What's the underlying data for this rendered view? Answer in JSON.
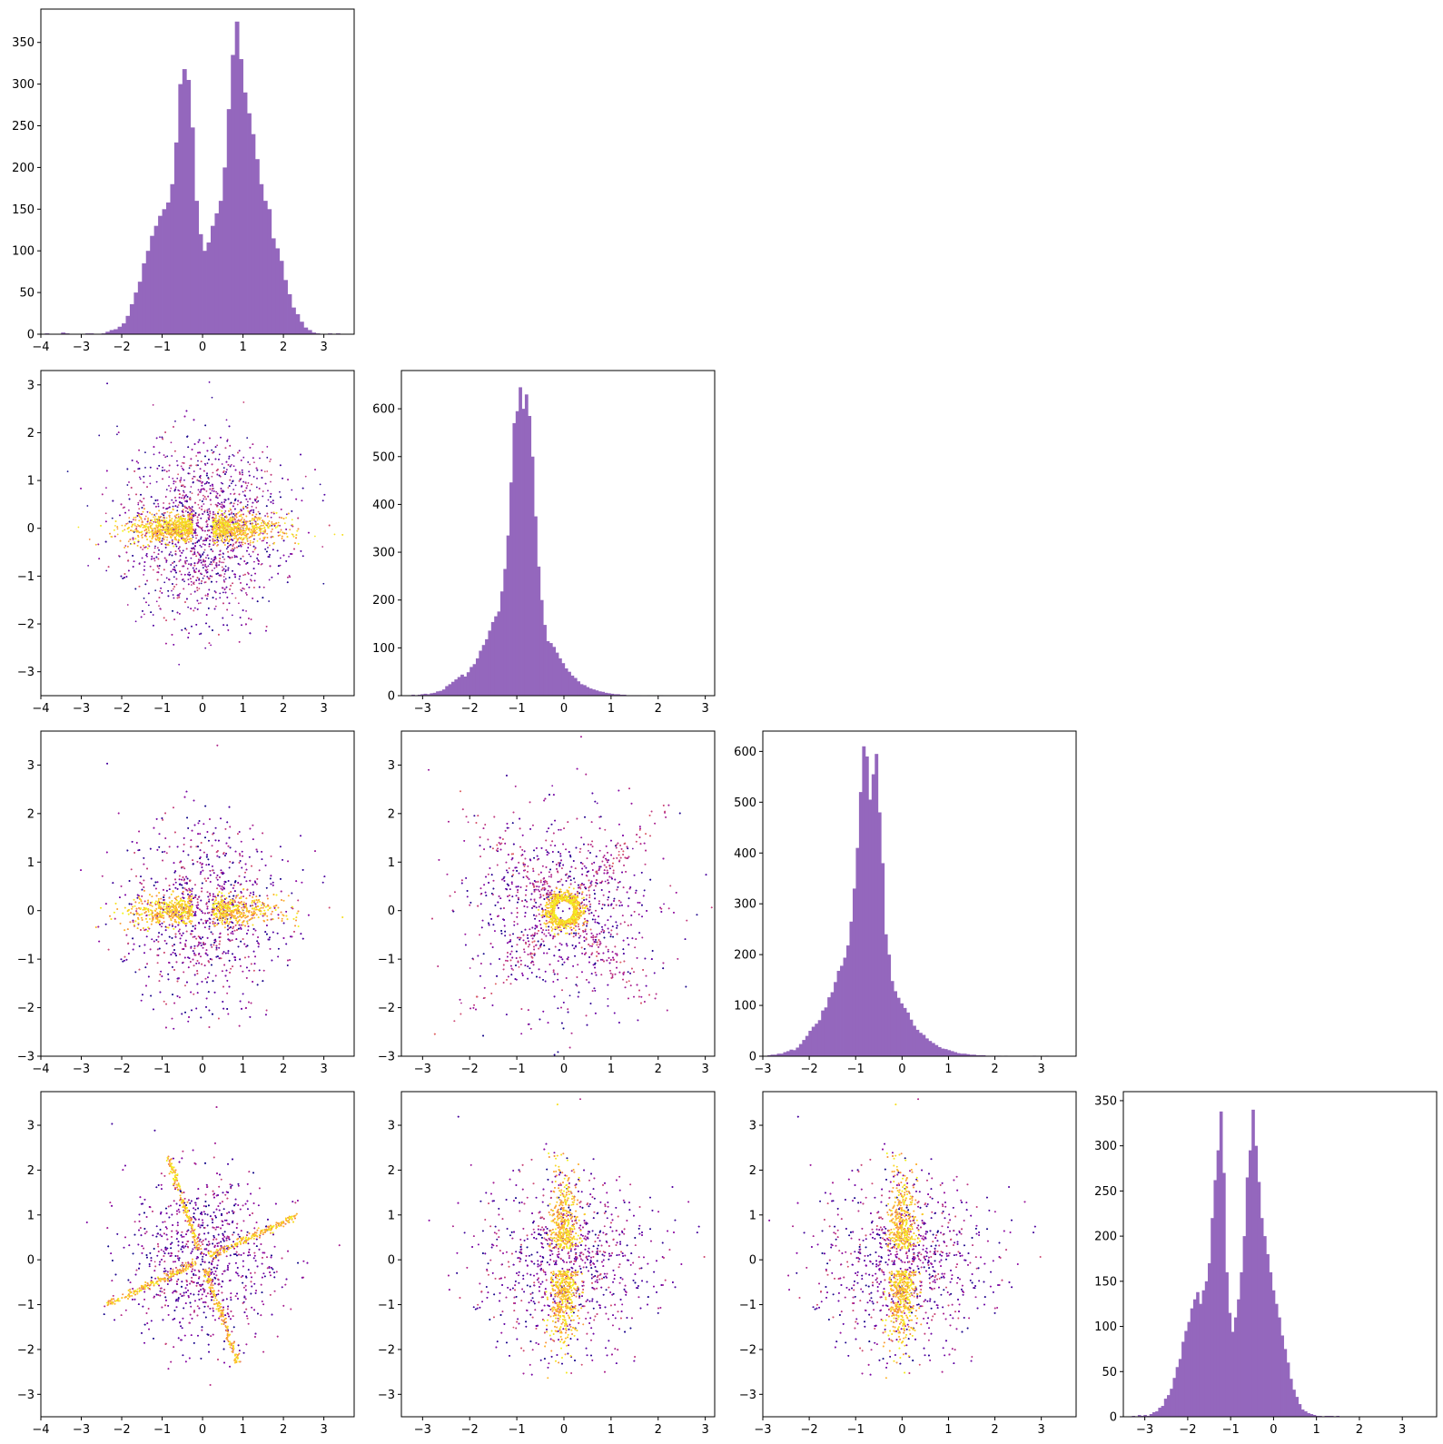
{
  "chart_data": [
    {
      "type": "histogram",
      "row": 0,
      "col": 0,
      "color": "#9467bd",
      "xlim": [
        -4.0,
        3.75
      ],
      "ylim": [
        0,
        390
      ],
      "xticks": [
        -4,
        -3,
        -2,
        -1,
        0,
        1,
        2,
        3
      ],
      "xtick_labels": [
        "−4",
        "−3",
        "−2",
        "−1",
        "0",
        "1",
        "2",
        "3"
      ],
      "yticks": [
        0,
        50,
        100,
        150,
        200,
        250,
        300,
        350
      ],
      "ytick_labels": [
        "0",
        "50",
        "100",
        "150",
        "200",
        "250",
        "300",
        "350"
      ],
      "bins": {
        "start": -3.9,
        "width": 0.1,
        "counts": [
          1,
          0,
          0,
          0,
          2,
          1,
          0,
          0,
          0,
          0,
          1,
          1,
          0,
          0,
          1,
          3,
          5,
          6,
          9,
          13,
          22,
          36,
          50,
          63,
          85,
          100,
          118,
          130,
          142,
          150,
          158,
          180,
          230,
          300,
          318,
          305,
          248,
          160,
          120,
          100,
          110,
          130,
          145,
          160,
          200,
          270,
          335,
          375,
          330,
          290,
          265,
          240,
          210,
          180,
          160,
          150,
          115,
          103,
          88,
          65,
          48,
          32,
          24,
          15,
          8,
          5,
          2,
          1,
          0,
          0,
          1,
          0,
          1,
          0
        ]
      }
    },
    {
      "type": "histogram",
      "row": 1,
      "col": 1,
      "color": "#9467bd",
      "xlim": [
        -3.45,
        3.2
      ],
      "ylim": [
        0,
        680
      ],
      "xticks": [
        -3,
        -2,
        -1,
        0,
        1,
        2,
        3
      ],
      "xtick_labels": [
        "−3",
        "−2",
        "−1",
        "0",
        "1",
        "2",
        "3"
      ],
      "yticks": [
        0,
        100,
        200,
        300,
        400,
        500,
        600
      ],
      "ytick_labels": [
        "0",
        "100",
        "200",
        "300",
        "400",
        "500",
        "600"
      ],
      "bins": {
        "start": -3.3,
        "width": 0.065,
        "counts": [
          1,
          2,
          1,
          2,
          3,
          4,
          3,
          5,
          6,
          9,
          10,
          13,
          20,
          24,
          29,
          34,
          39,
          44,
          40,
          49,
          60,
          66,
          78,
          94,
          106,
          118,
          136,
          154,
          166,
          176,
          218,
          265,
          335,
          446,
          570,
          595,
          645,
          600,
          630,
          585,
          500,
          375,
          270,
          200,
          148,
          114,
          110,
          102,
          90,
          78,
          68,
          57,
          50,
          42,
          37,
          30,
          24,
          22,
          18,
          15,
          13,
          11,
          9,
          8,
          6,
          5,
          4,
          3,
          3,
          2,
          2,
          1,
          1,
          1,
          1,
          1,
          0,
          0,
          1,
          0,
          0,
          0,
          1,
          0,
          0,
          0,
          0,
          0,
          0,
          0,
          0,
          0,
          0,
          0,
          0,
          0,
          0,
          0,
          0,
          0
        ]
      }
    },
    {
      "type": "histogram",
      "row": 2,
      "col": 2,
      "color": "#9467bd",
      "xlim": [
        -3.0,
        3.75
      ],
      "ylim": [
        0,
        640
      ],
      "xticks": [
        -3,
        -2,
        -1,
        0,
        1,
        2,
        3
      ],
      "xtick_labels": [
        "−3",
        "−2",
        "−1",
        "0",
        "1",
        "2",
        "3"
      ],
      "yticks": [
        0,
        100,
        200,
        300,
        400,
        500,
        600
      ],
      "ytick_labels": [
        "0",
        "100",
        "200",
        "300",
        "400",
        "500",
        "600"
      ],
      "bins": {
        "start": -2.9,
        "width": 0.068,
        "counts": [
          2,
          3,
          3,
          5,
          5,
          8,
          10,
          13,
          12,
          17,
          24,
          32,
          40,
          50,
          58,
          64,
          71,
          90,
          96,
          116,
          126,
          146,
          168,
          178,
          194,
          218,
          265,
          330,
          410,
          520,
          610,
          590,
          505,
          555,
          595,
          480,
          380,
          240,
          200,
          148,
          128,
          115,
          104,
          95,
          86,
          72,
          60,
          52,
          46,
          42,
          35,
          30,
          26,
          22,
          18,
          15,
          14,
          12,
          10,
          8,
          6,
          5,
          5,
          4,
          3,
          3,
          2,
          2,
          2,
          1,
          1,
          1,
          1,
          1,
          0,
          1,
          0,
          0,
          0,
          0,
          0,
          0,
          0,
          0,
          1,
          0,
          0,
          0,
          1,
          0,
          0,
          0,
          0,
          0,
          0,
          0,
          0,
          0,
          0,
          0
        ]
      }
    },
    {
      "type": "histogram",
      "row": 3,
      "col": 3,
      "color": "#9467bd",
      "xlim": [
        -3.5,
        3.8
      ],
      "ylim": [
        0,
        360
      ],
      "xticks": [
        -3,
        -2,
        -1,
        0,
        1,
        2,
        3
      ],
      "xtick_labels": [
        "−3",
        "−2",
        "−1",
        "0",
        "1",
        "2",
        "3"
      ],
      "yticks": [
        0,
        50,
        100,
        150,
        200,
        250,
        300,
        350
      ],
      "ytick_labels": [
        "0",
        "50",
        "100",
        "150",
        "200",
        "250",
        "300",
        "350"
      ],
      "bins": {
        "start": -3.3,
        "width": 0.068,
        "counts": [
          1,
          0,
          2,
          1,
          2,
          1,
          3,
          5,
          6,
          10,
          12,
          20,
          24,
          31,
          43,
          55,
          64,
          83,
          95,
          105,
          120,
          130,
          138,
          125,
          140,
          150,
          170,
          220,
          262,
          295,
          338,
          270,
          160,
          115,
          94,
          110,
          130,
          160,
          200,
          265,
          295,
          340,
          300,
          260,
          220,
          200,
          180,
          160,
          140,
          125,
          110,
          90,
          75,
          60,
          42,
          30,
          22,
          14,
          8,
          6,
          4,
          3,
          2,
          1,
          1,
          0,
          1,
          1,
          1,
          0,
          1,
          0,
          0,
          0,
          0,
          0,
          0,
          0,
          0,
          0,
          0,
          0,
          0,
          0,
          0,
          0,
          0,
          0,
          0,
          0,
          0,
          0,
          0,
          0,
          0,
          0,
          0,
          0,
          0,
          0
        ]
      }
    },
    {
      "type": "scatter",
      "row": 1,
      "col": 0,
      "xlim": [
        -4.0,
        3.75
      ],
      "ylim": [
        -3.5,
        3.3
      ],
      "xticks": [
        -4,
        -3,
        -2,
        -1,
        0,
        1,
        2,
        3
      ],
      "xtick_labels": [
        "−4",
        "−3",
        "−2",
        "−1",
        "0",
        "1",
        "2",
        "3"
      ],
      "yticks": [
        -3,
        -2,
        -1,
        0,
        1,
        2,
        3
      ],
      "ytick_labels": [
        "−3",
        "−2",
        "−1",
        "0",
        "1",
        "2",
        "3"
      ],
      "colormap": "plasma"
    },
    {
      "type": "scatter",
      "row": 2,
      "col": 0,
      "xlim": [
        -4.0,
        3.75
      ],
      "ylim": [
        -3.0,
        3.7
      ],
      "xticks": [
        -4,
        -3,
        -2,
        -1,
        0,
        1,
        2,
        3
      ],
      "xtick_labels": [
        "−4",
        "−3",
        "−2",
        "−1",
        "0",
        "1",
        "2",
        "3"
      ],
      "yticks": [
        -3,
        -2,
        -1,
        0,
        1,
        2,
        3
      ],
      "ytick_labels": [
        "−3",
        "−2",
        "−1",
        "0",
        "1",
        "2",
        "3"
      ],
      "colormap": "plasma"
    },
    {
      "type": "scatter",
      "row": 3,
      "col": 0,
      "xlim": [
        -4.0,
        3.75
      ],
      "ylim": [
        -3.5,
        3.75
      ],
      "xticks": [
        -4,
        -3,
        -2,
        -1,
        0,
        1,
        2,
        3
      ],
      "xtick_labels": [
        "−4",
        "−3",
        "−2",
        "−1",
        "0",
        "1",
        "2",
        "3"
      ],
      "yticks": [
        -3,
        -2,
        -1,
        0,
        1,
        2,
        3
      ],
      "ytick_labels": [
        "−3",
        "−2",
        "−1",
        "0",
        "1",
        "2",
        "3"
      ],
      "colormap": "plasma"
    },
    {
      "type": "scatter",
      "row": 2,
      "col": 1,
      "xlim": [
        -3.45,
        3.2
      ],
      "ylim": [
        -3.0,
        3.7
      ],
      "xticks": [
        -3,
        -2,
        -1,
        0,
        1,
        2,
        3
      ],
      "xtick_labels": [
        "−3",
        "−2",
        "−1",
        "0",
        "1",
        "2",
        "3"
      ],
      "yticks": [
        -3,
        -2,
        -1,
        0,
        1,
        2,
        3
      ],
      "ytick_labels": [
        "−3",
        "−2",
        "−1",
        "0",
        "1",
        "2",
        "3"
      ],
      "colormap": "plasma"
    },
    {
      "type": "scatter",
      "row": 3,
      "col": 1,
      "xlim": [
        -3.45,
        3.2
      ],
      "ylim": [
        -3.5,
        3.75
      ],
      "xticks": [
        -3,
        -2,
        -1,
        0,
        1,
        2,
        3
      ],
      "xtick_labels": [
        "−3",
        "−2",
        "−1",
        "0",
        "1",
        "2",
        "3"
      ],
      "yticks": [
        -3,
        -2,
        -1,
        0,
        1,
        2,
        3
      ],
      "ytick_labels": [
        "−3",
        "−2",
        "−1",
        "0",
        "1",
        "2",
        "3"
      ],
      "colormap": "plasma"
    },
    {
      "type": "scatter",
      "row": 3,
      "col": 2,
      "xlim": [
        -3.0,
        3.75
      ],
      "ylim": [
        -3.5,
        3.75
      ],
      "xticks": [
        -3,
        -2,
        -1,
        0,
        1,
        2,
        3
      ],
      "xtick_labels": [
        "−3",
        "−2",
        "−1",
        "0",
        "1",
        "2",
        "3"
      ],
      "yticks": [
        -3,
        -2,
        -1,
        0,
        1,
        2,
        3
      ],
      "ytick_labels": [
        "−3",
        "−2",
        "−1",
        "0",
        "1",
        "2",
        "3"
      ],
      "colormap": "plasma"
    }
  ]
}
